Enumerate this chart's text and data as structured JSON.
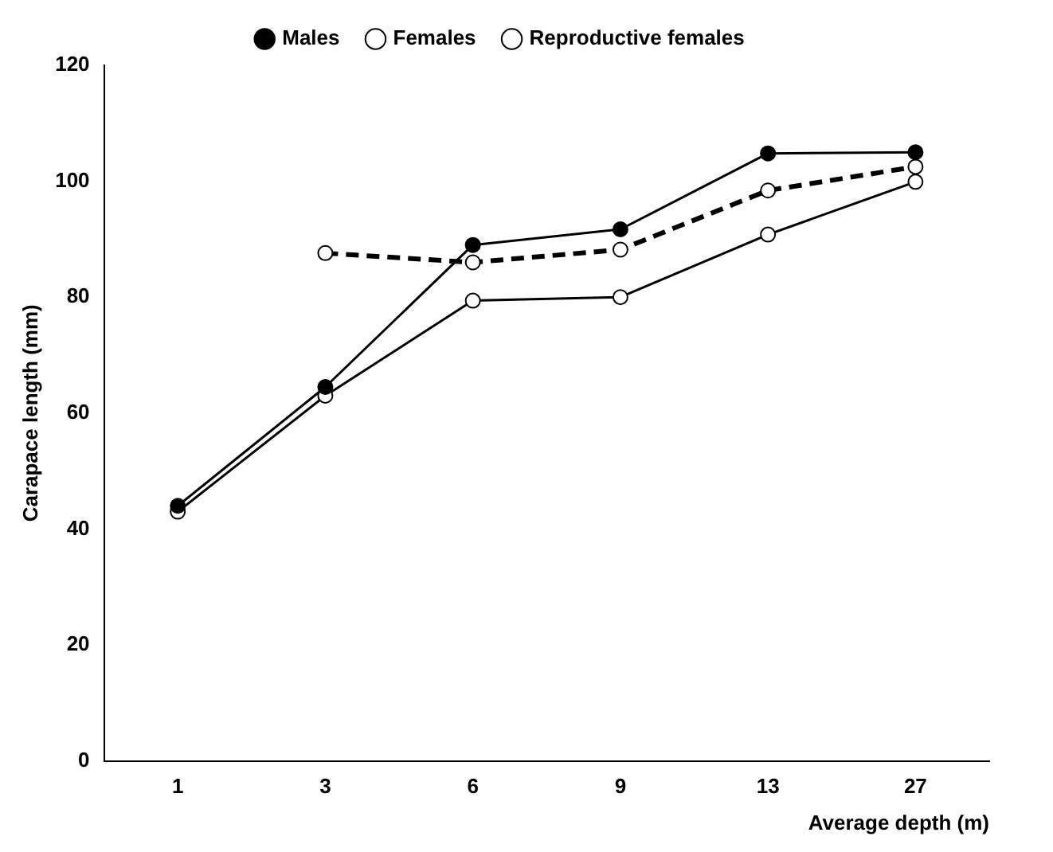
{
  "chart_data": {
    "type": "line",
    "xlabel": "Average depth (m)",
    "ylabel": "Carapace length (mm)",
    "categories": [
      "1",
      "3",
      "6",
      "9",
      "13",
      "27"
    ],
    "series": [
      {
        "name": "Males",
        "color": "#000000",
        "values": [
          44,
          64.5,
          89,
          91.7,
          104.8,
          105
        ],
        "line_style": "solid"
      },
      {
        "name": "Females",
        "color": "#000000",
        "values": [
          43,
          63,
          79.4,
          80,
          90.8,
          99.9
        ],
        "line_style": "solid"
      },
      {
        "name": "Reproductive females",
        "color": "#000000",
        "values": [
          null,
          87.6,
          86,
          88.2,
          98.4,
          102.5
        ],
        "line_style": "dashed"
      }
    ],
    "ylim": [
      0,
      120
    ],
    "yticks": [
      0,
      20,
      40,
      60,
      80,
      100,
      120
    ],
    "grid": false,
    "legend": "top",
    "marker": "circle"
  }
}
